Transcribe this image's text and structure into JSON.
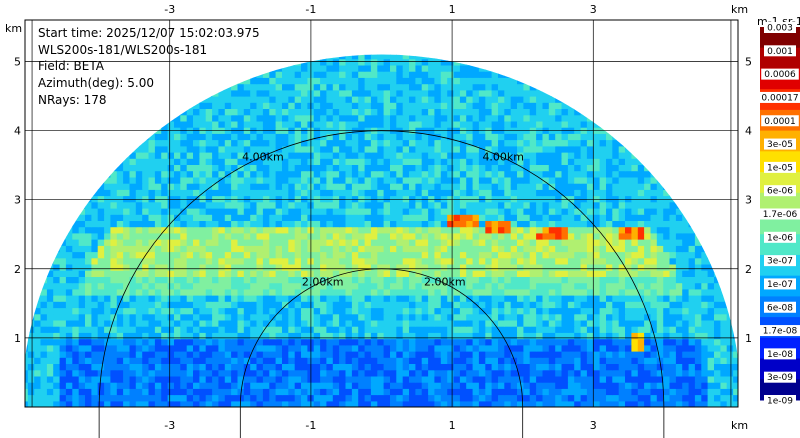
{
  "chart_data": {
    "type": "heatmap",
    "info": [
      "Start time: 2025/12/07 15:02:03.975",
      "WLS200s-181/WLS200s-181",
      "Field: BETA",
      "Azimuth(deg): 5.00",
      "NRays: 178"
    ],
    "x_unit": "km",
    "y_unit": "km",
    "x_ticks": [
      "-3",
      "-1",
      "1",
      "3"
    ],
    "x_tick_values": [
      -3,
      -1,
      1,
      3
    ],
    "y_ticks": [
      "1",
      "2",
      "3",
      "4",
      "5"
    ],
    "y_tick_values": [
      1,
      2,
      3,
      4,
      5
    ],
    "xlim": [
      -5.05,
      5.05
    ],
    "ylim": [
      0,
      5.6
    ],
    "grid": true,
    "max_range_km": 5.1,
    "range_rings": [
      {
        "value": 2,
        "left_label": "2.00km",
        "right_label": "2.00km"
      },
      {
        "value": 4,
        "left_label": "4.00km",
        "right_label": "4.00km"
      }
    ],
    "colorbar": {
      "title": "m-1 sr-1",
      "placement": "right",
      "labels": [
        "0.003",
        "0.001",
        "0.0006",
        "0.00017",
        "0.0001",
        "3e-05",
        "1e-05",
        "6e-06",
        "1.7e-06",
        "1e-06",
        "3e-07",
        "1e-07",
        "6e-08",
        "1.7e-08",
        "1e-08",
        "3e-09",
        "1e-09"
      ],
      "colors": [
        "#00008f",
        "#0000c8",
        "#0020ff",
        "#0050ff",
        "#0080ff",
        "#00a8ff",
        "#20d0f0",
        "#50e8c8",
        "#80f0a0",
        "#b0f070",
        "#e0f040",
        "#ffe000",
        "#ffb000",
        "#ff7000",
        "#ff3000",
        "#e00000",
        "#b00000",
        "#800000"
      ]
    },
    "features": [
      {
        "name": "aerosol layer",
        "height_km": [
          1.85,
          2.6
        ],
        "level": "1e-06 to 1e-05"
      },
      {
        "name": "cloud returns",
        "x_km": [
          1.1,
          1.6,
          2.4,
          3.5
        ],
        "height_km": [
          2.65,
          2.55,
          2.45,
          2.5
        ],
        "level": "0.0001 to 0.001"
      },
      {
        "name": "near-field return",
        "x_km": [
          3.5,
          3.7
        ],
        "height_km": [
          0.8,
          1.0
        ],
        "level": "3e-05"
      }
    ]
  }
}
